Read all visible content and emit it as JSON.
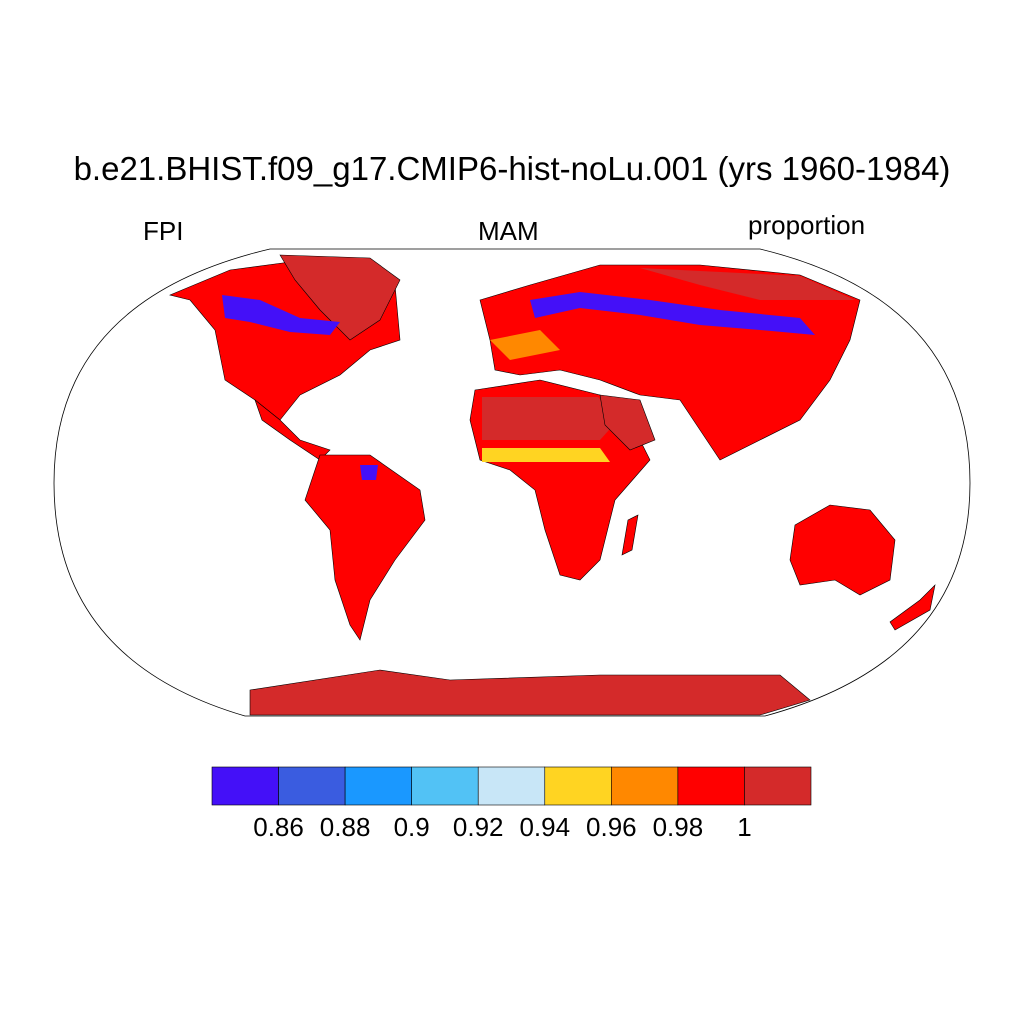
{
  "title": "b.e21.BHIST.f09_g17.CMIP6-hist-noLu.001 (yrs 1960-1984)",
  "left_label": "FPI",
  "center_label": "MAM",
  "right_label": "proportion",
  "colorbar": {
    "colors": [
      "#4410f8",
      "#3a5ce0",
      "#1a98ff",
      "#52c2f5",
      "#c8e6f7",
      "#ffd422",
      "#ff8800",
      "#ff0000",
      "#d42a2a"
    ],
    "labels": [
      "0.86",
      "0.88",
      "0.9",
      "0.92",
      "0.94",
      "0.96",
      "0.98",
      "1"
    ]
  }
}
